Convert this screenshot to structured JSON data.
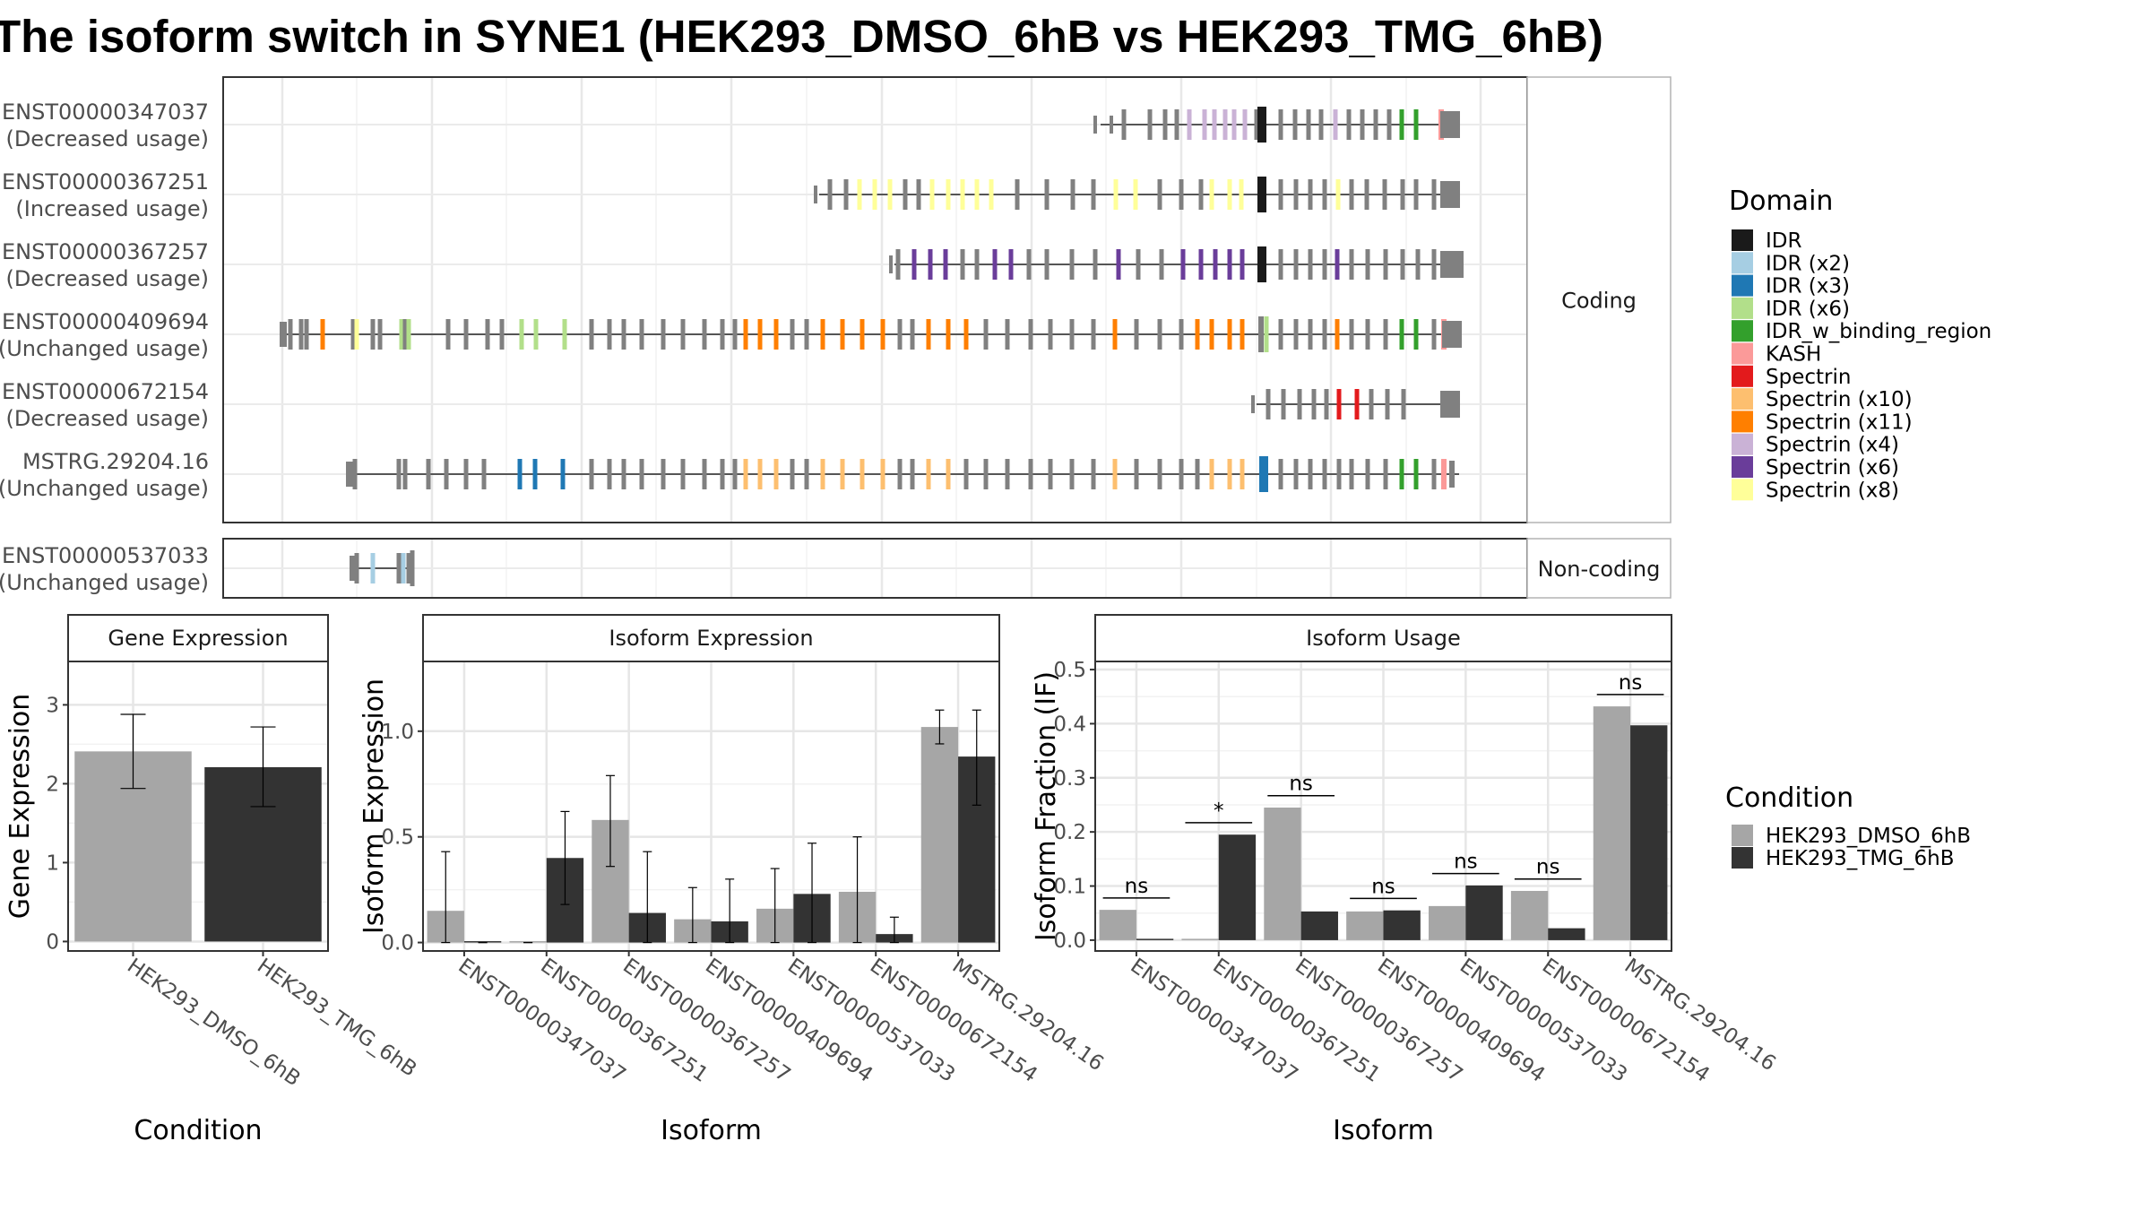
{
  "title": "The isoform switch in SYNE1 (HEK293_DMSO_6hB vs HEK293_TMG_6hB)",
  "structure_panel": {
    "coding_label": "Coding",
    "noncoding_label": "Non-coding",
    "coding_transcripts": [
      {
        "id": "ENST00000347037",
        "usage": "(Decreased usage)"
      },
      {
        "id": "ENST00000367251",
        "usage": "(Increased usage)"
      },
      {
        "id": "ENST00000367257",
        "usage": "(Decreased usage)"
      },
      {
        "id": "ENST00000409694",
        "usage": "(Unchanged usage)"
      },
      {
        "id": "ENST00000672154",
        "usage": "(Decreased usage)"
      },
      {
        "id": "MSTRG.29204.16",
        "usage": "(Unchanged usage)"
      }
    ],
    "noncoding_transcripts": [
      {
        "id": "ENST00000537033",
        "usage": "(Unchanged usage)"
      }
    ]
  },
  "legends": {
    "domain": {
      "title": "Domain",
      "items": [
        {
          "label": "IDR",
          "color": "#1a1a1a"
        },
        {
          "label": "IDR (x2)",
          "color": "#a6cee3"
        },
        {
          "label": "IDR (x3)",
          "color": "#1f78b4"
        },
        {
          "label": "IDR (x6)",
          "color": "#b2df8a"
        },
        {
          "label": "IDR_w_binding_region",
          "color": "#33a02c"
        },
        {
          "label": "KASH",
          "color": "#fb9a99"
        },
        {
          "label": "Spectrin",
          "color": "#e31a1c"
        },
        {
          "label": "Spectrin (x10)",
          "color": "#fdbf6f"
        },
        {
          "label": "Spectrin (x11)",
          "color": "#ff7f00"
        },
        {
          "label": "Spectrin (x4)",
          "color": "#cab2d6"
        },
        {
          "label": "Spectrin (x6)",
          "color": "#6a3d9a"
        },
        {
          "label": "Spectrin (x8)",
          "color": "#ffff99"
        }
      ]
    },
    "condition": {
      "title": "Condition",
      "items": [
        {
          "label": "HEK293_DMSO_6hB",
          "color": "#a6a6a6"
        },
        {
          "label": "HEK293_TMG_6hB",
          "color": "#333333"
        }
      ]
    }
  },
  "chart_data": [
    {
      "type": "bar",
      "panel_title": "Gene Expression",
      "categories": [
        "HEK293_DMSO_6hB",
        "HEK293_TMG_6hB"
      ],
      "values": [
        2.41,
        2.21
      ],
      "error_low": [
        1.94,
        1.71
      ],
      "error_high": [
        2.88,
        2.72
      ],
      "xlabel": "Condition",
      "ylabel": "Gene Expression",
      "ylim": [
        -0.12,
        3.55
      ],
      "yticks": [
        0,
        1,
        2,
        3
      ],
      "grid": true
    },
    {
      "type": "bar",
      "panel_title": "Isoform Expression",
      "categories": [
        "ENST00000347037",
        "ENST00000367251",
        "ENST00000367257",
        "ENST00000409694",
        "ENST00000537033",
        "ENST00000672154",
        "MSTRG.29204.16"
      ],
      "series": [
        {
          "values": [
            0.15,
            0.0,
            0.58,
            0.11,
            0.16,
            0.24,
            1.02
          ],
          "error_low": [
            0.0,
            0.0,
            0.36,
            0.0,
            0.0,
            0.0,
            0.94
          ],
          "error_high": [
            0.43,
            0.0,
            0.79,
            0.26,
            0.35,
            0.5,
            1.1
          ]
        },
        {
          "values": [
            0.0,
            0.4,
            0.14,
            0.1,
            0.23,
            0.04,
            0.88
          ],
          "error_low": [
            0.0,
            0.18,
            0.0,
            0.0,
            0.0,
            0.0,
            0.65
          ],
          "error_high": [
            0.0,
            0.62,
            0.43,
            0.3,
            0.47,
            0.12,
            1.1
          ]
        }
      ],
      "xlabel": "Isoform",
      "ylabel": "Isoform Expression",
      "ylim": [
        -0.04,
        1.33
      ],
      "yticks": [
        0.0,
        0.5,
        1.0
      ],
      "grid": true
    },
    {
      "type": "bar",
      "panel_title": "Isoform Usage",
      "categories": [
        "ENST00000347037",
        "ENST00000367251",
        "ENST00000367257",
        "ENST00000409694",
        "ENST00000537033",
        "ENST00000672154",
        "MSTRG.29204.16"
      ],
      "series": [
        {
          "values": [
            0.056,
            0.0,
            0.245,
            0.053,
            0.063,
            0.091,
            0.432
          ]
        },
        {
          "values": [
            0.0,
            0.195,
            0.053,
            0.055,
            0.101,
            0.022,
            0.397
          ]
        }
      ],
      "significance": [
        {
          "category": 0,
          "label": "ns",
          "y": 0.078
        },
        {
          "category": 1,
          "label": "*",
          "y": 0.217
        },
        {
          "category": 2,
          "label": "ns",
          "y": 0.267
        },
        {
          "category": 3,
          "label": "ns",
          "y": 0.077
        },
        {
          "category": 4,
          "label": "ns",
          "y": 0.123
        },
        {
          "category": 5,
          "label": "ns",
          "y": 0.113
        },
        {
          "category": 6,
          "label": "ns",
          "y": 0.454
        }
      ],
      "xlabel": "Isoform",
      "ylabel": "Isoform Fraction (IF)",
      "ylim": [
        -0.02,
        0.515
      ],
      "yticks": [
        0.0,
        0.1,
        0.2,
        0.3,
        0.4,
        0.5
      ],
      "grid": true
    }
  ]
}
